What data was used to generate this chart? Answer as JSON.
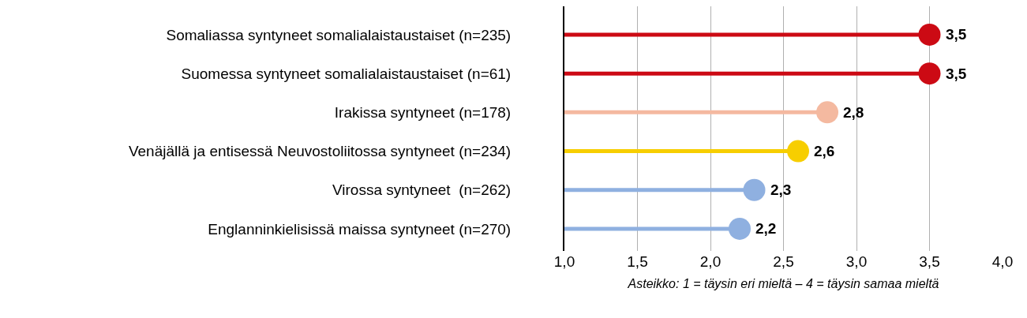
{
  "chart_data": {
    "type": "lollipop",
    "orientation": "horizontal",
    "categories": [
      "Somaliassa syntyneet somalialaistaustaiset (n=235)",
      "Suomessa syntyneet somalialaistaustaiset (n=61)",
      "Irakissa syntyneet (n=178)",
      "Venäjällä ja entisessä Neuvostoliitossa syntyneet (n=234)",
      "Virossa syntyneet  (n=262)",
      "Englanninkielisissä maissa syntyneet (n=270)"
    ],
    "values": [
      3.5,
      3.5,
      2.8,
      2.6,
      2.3,
      2.2
    ],
    "colors": [
      "#cc0a14",
      "#cc0a14",
      "#f4b9a0",
      "#f7ce00",
      "#8fb0e0",
      "#8fb0e0"
    ],
    "value_labels": [
      "3,5",
      "3,5",
      "2,8",
      "2,6",
      "2,3",
      "2,2"
    ],
    "xlim": [
      1,
      4
    ],
    "xticks": [
      {
        "value": 1,
        "label": "1,0"
      },
      {
        "value": 1.5,
        "label": "1,5"
      },
      {
        "value": 2,
        "label": "2,0"
      },
      {
        "value": 2.5,
        "label": "2,5"
      },
      {
        "value": 3,
        "label": "3,0"
      },
      {
        "value": 3.5,
        "label": "3,5"
      },
      {
        "value": 4,
        "label": "4,0"
      }
    ],
    "xlabel": "Asteikko: 1 = täysin eri mieltä – 4 = täysin samaa mieltä",
    "grid": "x",
    "marker": "circle"
  }
}
